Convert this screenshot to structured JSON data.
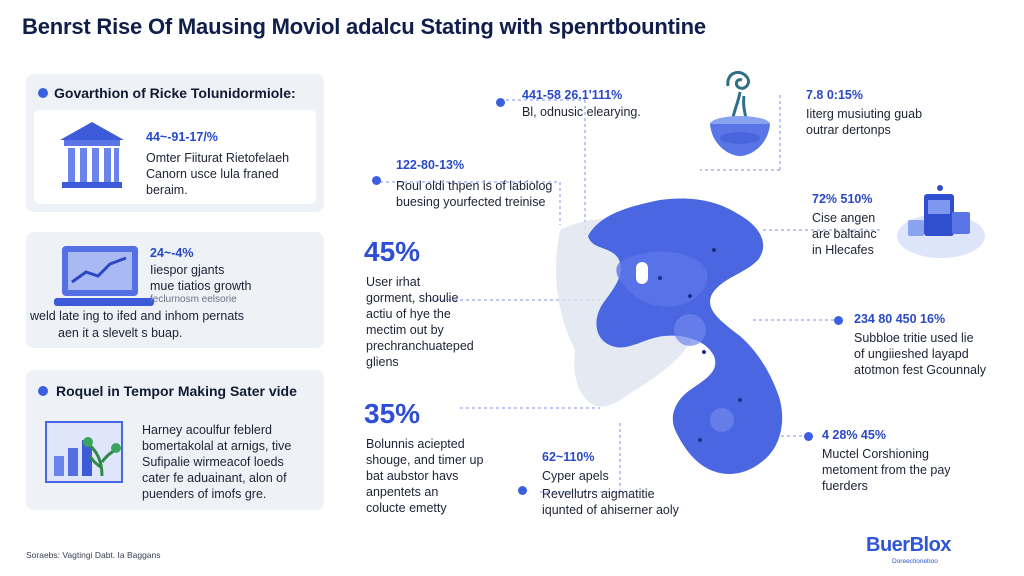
{
  "title": "Benrst Rise Of Mausing Moviol adalcu Stating with spenrtbountine",
  "panel1": {
    "heading": "Govarthion of Ricke Tolunidormiole:",
    "percent": "44~-91-17/%",
    "text": [
      "Omter Fiiturat Rietofelaeh",
      "Canorn usce lula franed",
      "beraim."
    ]
  },
  "panel2": {
    "percent": "24~-4%",
    "text": [
      "Iiespor gjants",
      "mue tiatios growth",
      "feclurnosm eelsorie",
      "weld late ing to ifed and inhom pernats",
      "aen it a slevelt s buap."
    ]
  },
  "panel3": {
    "heading": "Roquel in Tempor Making Sater vide",
    "text": [
      "Harney acoulfur feblerd",
      "bomertakolal at arnigs, tive",
      "Sufipalie wirmeacof loeds",
      "cater fe aduainant, alon of",
      "puenders of imofs gre."
    ]
  },
  "center": {
    "big1": "45%",
    "text1": [
      "User irhat",
      "gorment, shoulie",
      "actiu of hye the",
      "mectim out by",
      "prechranchuateped",
      "gliens"
    ],
    "big2": "35%",
    "text2": [
      "Bolunnis aciepted",
      "shouge, and timer up",
      "bat aubstor havs",
      "anpentets an",
      "colucte emetty"
    ]
  },
  "callouts": {
    "c1": {
      "num": "441-58 26.1'111%",
      "text": [
        "Bl, odnusic elearying."
      ]
    },
    "c2": {
      "num": "122-80-13%",
      "text": [
        "Roul oldi thpen is of labiolog",
        "buesing yourfected treinise"
      ]
    },
    "c3": {
      "num": "7.8 0:15%",
      "text": [
        "Iiterg musiuting guab",
        "outrar dertonps"
      ]
    },
    "c4": {
      "num": "72% 510%",
      "text": [
        "Cise angen",
        "are baltainc",
        "in Hlecafes"
      ]
    },
    "c5": {
      "num": "234 80 450 16%",
      "text": [
        "Subbloe tritie used lie",
        "of ungiieshed layapd",
        "atotmon fest Gcounnaly"
      ]
    },
    "c6": {
      "num": "4 28% 45%",
      "text": [
        "Muctel Corshioning",
        "metoment from the pay",
        "fuerders"
      ]
    },
    "c7": {
      "num": "62~110%",
      "text": [
        "Cyper apels",
        "Revellutrs aigmatitie",
        "iqunted of ahiserner aoly"
      ]
    }
  },
  "footer": {
    "source": "Soraebs: Vagtingi Dabt. Ia Baggans",
    "logo": "BuerBlox",
    "logo_sub": "Doreectioneboo"
  },
  "colors": {
    "accent": "#3b5fe0",
    "map": "#4a66e0",
    "panel_bg": "#eef1f6",
    "title": "#0f1e4a"
  }
}
